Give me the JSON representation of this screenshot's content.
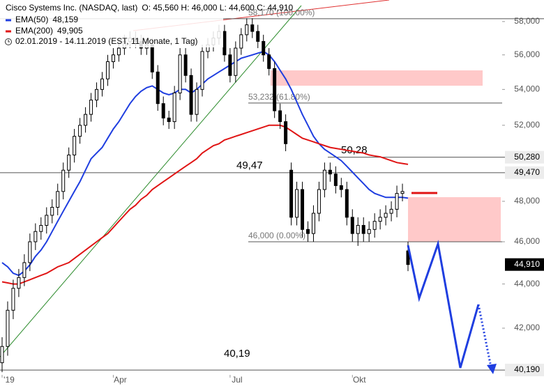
{
  "chart_data": {
    "type": "candlestick",
    "title": "Cisco Systems Inc. (NASDAQ, last)",
    "ohlc_text": "O: 45,560  H: 46,000  L: 44,600  C: 44,910",
    "period": "02.01.2019 - 14.11.2019 (EST, 11 Monate, 1 Tag)",
    "log_scale": true,
    "ylim": [
      39.52,
      59.33
    ],
    "yticks": [
      {
        "value": 58,
        "label": "58,000"
      },
      {
        "value": 56,
        "label": "56,000"
      },
      {
        "value": 54,
        "label": "54,000"
      },
      {
        "value": 52,
        "label": "52,000"
      },
      {
        "value": 48,
        "label": "48,000"
      },
      {
        "value": 46,
        "label": "46,000"
      },
      {
        "value": 44,
        "label": "44,000"
      },
      {
        "value": 42,
        "label": "42,000"
      }
    ],
    "categories": [
      "'19",
      null,
      null,
      null,
      null,
      null,
      null,
      null,
      null,
      null,
      null,
      null,
      null,
      null,
      null,
      null,
      null,
      null,
      null,
      null,
      "Apr",
      null,
      null,
      null,
      null,
      null,
      null,
      null,
      null,
      null,
      null,
      null,
      null,
      null,
      null,
      null,
      null,
      null,
      null,
      null,
      null,
      "Jul",
      null,
      null,
      null,
      null,
      null,
      null,
      null,
      null,
      null,
      null,
      null,
      null,
      null,
      null,
      null,
      null,
      null,
      null,
      null,
      null,
      null,
      "Okt",
      null,
      null,
      null,
      null,
      null,
      null,
      null,
      null,
      null,
      null
    ],
    "series": [
      {
        "name": "Cisco Systems Inc. (NASDAQ, last)",
        "up_color": "#ffffff",
        "down_color": "#000000",
        "open": [
          40.5,
          41.2,
          42.8,
          43.8,
          44.3,
          45.0,
          46.0,
          46.5,
          46.8,
          47.3,
          47.7,
          48.5,
          49.6,
          50.4,
          51.4,
          52.0,
          52.6,
          53.4,
          54.0,
          54.6,
          55.6,
          56.0,
          56.4,
          56.8,
          57.0,
          56.8,
          56.4,
          56.6,
          55.0,
          53.2,
          52.4,
          52.2,
          53.8,
          56.0,
          54.8,
          52.6,
          54.0,
          56.2,
          56.6,
          57.0,
          57.4,
          56.0,
          54.8,
          56.4,
          57.2,
          57.8,
          57.4,
          56.8,
          56.0,
          55.2,
          52.8,
          52.2,
          49.6,
          47.2,
          48.6,
          46.6,
          46.4,
          47.4,
          48.6,
          49.6,
          49.4,
          48.8,
          48.6,
          47.2,
          46.4,
          46.8,
          46.4,
          46.6,
          47.0,
          47.2,
          47.4,
          47.6,
          48.4,
          45.56
        ],
        "high": [
          41.6,
          43.2,
          44.2,
          44.7,
          45.4,
          46.4,
          46.9,
          47.2,
          47.7,
          48.1,
          48.9,
          50.0,
          50.8,
          51.8,
          52.4,
          53.0,
          53.8,
          54.4,
          55.0,
          56.0,
          56.4,
          56.8,
          57.2,
          57.4,
          57.4,
          57.2,
          57.0,
          57.0,
          55.4,
          53.6,
          52.8,
          54.2,
          56.4,
          56.4,
          55.2,
          54.4,
          56.6,
          57.0,
          57.4,
          57.8,
          57.8,
          56.4,
          56.8,
          57.6,
          58.2,
          58.2,
          57.8,
          57.2,
          56.4,
          55.6,
          53.2,
          52.6,
          50.0,
          49.0,
          49.0,
          47.0,
          47.8,
          49.0,
          50.0,
          50.0,
          49.8,
          49.2,
          49.0,
          47.6,
          47.2,
          47.2,
          47.0,
          47.4,
          47.6,
          47.8,
          48.0,
          48.8,
          48.9,
          46.0
        ],
        "low": [
          40.1,
          40.8,
          42.4,
          43.4,
          43.9,
          44.6,
          45.6,
          46.1,
          46.4,
          46.9,
          47.3,
          48.1,
          49.2,
          50.0,
          51.0,
          51.6,
          52.2,
          53.0,
          53.6,
          54.2,
          55.2,
          55.6,
          56.0,
          56.4,
          56.4,
          56.0,
          56.0,
          54.6,
          52.8,
          52.0,
          51.8,
          51.8,
          53.4,
          54.4,
          52.2,
          52.2,
          53.6,
          55.8,
          56.2,
          56.6,
          55.6,
          54.4,
          54.4,
          56.0,
          56.8,
          57.0,
          56.4,
          55.6,
          54.8,
          52.4,
          51.8,
          50.6,
          46.8,
          46.8,
          46.2,
          46.0,
          46.0,
          47.0,
          48.2,
          49.0,
          48.4,
          48.2,
          46.8,
          46.0,
          45.8,
          46.0,
          46.0,
          46.2,
          46.6,
          46.8,
          47.0,
          47.2,
          48.0,
          44.6
        ],
        "close": [
          41.2,
          42.8,
          43.8,
          44.3,
          45.0,
          46.0,
          46.5,
          46.8,
          47.3,
          47.7,
          48.5,
          49.6,
          50.4,
          51.4,
          52.0,
          52.6,
          53.4,
          54.0,
          54.6,
          55.6,
          56.0,
          56.4,
          56.8,
          57.0,
          56.8,
          56.4,
          56.6,
          55.0,
          53.2,
          52.4,
          52.2,
          53.8,
          56.0,
          54.8,
          52.6,
          54.0,
          56.2,
          56.6,
          57.0,
          57.4,
          56.0,
          54.8,
          56.4,
          57.2,
          57.8,
          57.4,
          56.8,
          56.0,
          55.2,
          52.8,
          52.2,
          51.0,
          47.2,
          48.6,
          46.6,
          46.4,
          47.4,
          48.6,
          49.6,
          49.4,
          48.8,
          48.6,
          47.2,
          46.4,
          46.8,
          46.4,
          46.6,
          47.0,
          47.2,
          47.4,
          47.6,
          48.4,
          48.5,
          44.91
        ]
      },
      {
        "name": "EMA(50)",
        "last_label": "48,159",
        "color": "#1f3ee0",
        "values": [
          45.0,
          44.8,
          44.5,
          44.4,
          44.6,
          44.9,
          45.3,
          45.6,
          46.0,
          46.5,
          47.0,
          47.5,
          48.0,
          48.5,
          49.0,
          49.6,
          50.2,
          50.5,
          50.8,
          51.3,
          51.8,
          52.2,
          52.7,
          53.2,
          53.6,
          53.9,
          54.1,
          54.2,
          54.0,
          53.8,
          53.7,
          53.8,
          54.0,
          54.0,
          53.8,
          54.0,
          54.3,
          54.6,
          54.8,
          55.0,
          55.2,
          55.4,
          55.6,
          55.8,
          55.9,
          56.0,
          56.1,
          56.2,
          56.0,
          55.6,
          55.1,
          54.6,
          54.0,
          53.3,
          52.6,
          52.0,
          51.4,
          51.0,
          50.7,
          50.5,
          50.3,
          50.1,
          49.8,
          49.5,
          49.2,
          48.9,
          48.6,
          48.4,
          48.3,
          48.2,
          48.2,
          48.2,
          48.2,
          48.159
        ]
      },
      {
        "name": "EMA(200)",
        "last_label": "49,905",
        "color": "#e01515",
        "values": [
          44.1,
          44.05,
          44.0,
          44.0,
          44.1,
          44.2,
          44.3,
          44.4,
          44.5,
          44.65,
          44.8,
          44.9,
          45.0,
          45.2,
          45.4,
          45.6,
          45.8,
          46.0,
          46.2,
          46.4,
          46.7,
          47.0,
          47.3,
          47.6,
          47.8,
          48.1,
          48.3,
          48.6,
          48.8,
          49.0,
          49.2,
          49.4,
          49.6,
          49.8,
          50.0,
          50.2,
          50.5,
          50.7,
          50.9,
          51.0,
          51.2,
          51.3,
          51.4,
          51.5,
          51.6,
          51.7,
          51.8,
          51.9,
          52.0,
          52.0,
          52.0,
          51.9,
          51.7,
          51.5,
          51.3,
          51.2,
          51.1,
          51.0,
          50.9,
          50.8,
          50.75,
          50.7,
          50.65,
          50.6,
          50.55,
          50.5,
          50.4,
          50.35,
          50.3,
          50.2,
          50.1,
          50.0,
          49.95,
          49.905
        ]
      }
    ],
    "fib_levels": [
      {
        "value": 58.17,
        "label": "58,170 (100.00%)"
      },
      {
        "value": 53.232,
        "label": "53,232 (61.80%)"
      },
      {
        "value": 46,
        "label": "46,000 (0.00%)"
      }
    ],
    "price_markers": [
      {
        "value": 50.28,
        "label": "50,280",
        "color": "#ececec",
        "text_color": "#000000"
      },
      {
        "value": 49.47,
        "label": "49,470",
        "color": "#ececec",
        "text_color": "#000000"
      },
      {
        "value": 44.91,
        "label": "44,910",
        "color": "#000000",
        "text_color": "#ffffff"
      },
      {
        "value": 40.19,
        "label": "40,190",
        "color": "#ececec",
        "text_color": "#000000"
      }
    ],
    "notes": [
      "50,28",
      "49,47",
      "40,19"
    ]
  }
}
